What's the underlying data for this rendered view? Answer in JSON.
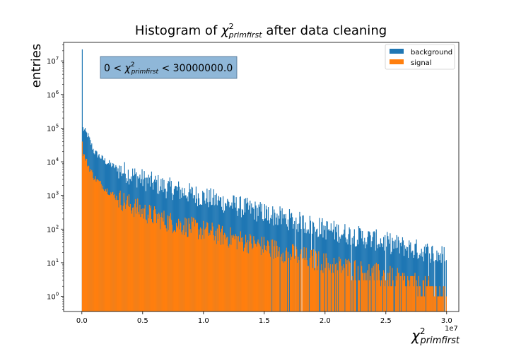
{
  "chart_data": {
    "type": "bar",
    "subtype": "histogram",
    "title_prefix": "Histogram of ",
    "title_suffix": " after data cleaning",
    "variable_symbol": "χ",
    "variable_superscript": "2",
    "variable_subscript": "primfirst",
    "ylabel": "entries",
    "x_offset_label": "1e7",
    "x_ticks": [
      0.0,
      0.5,
      1.0,
      1.5,
      2.0,
      2.5,
      3.0
    ],
    "x_tick_labels": [
      "0.0",
      "0.5",
      "1.0",
      "1.5",
      "2.0",
      "2.5",
      "3.0"
    ],
    "xlim": [
      -0.15,
      3.1
    ],
    "yscale": "log",
    "ylim_exponent": [
      -0.45,
      7.55
    ],
    "y_tick_exponents": [
      0,
      1,
      2,
      3,
      4,
      5,
      6,
      7
    ],
    "y_tick_base": "10",
    "range": [
      0,
      30000000
    ],
    "bins": 500,
    "annotation": {
      "prefix": "0 < ",
      "suffix": " < 30000000.0",
      "box_color": "#8fb7d8"
    },
    "legend": {
      "placement": "top-right"
    },
    "series": [
      {
        "name": "background",
        "color": "#1f77b4",
        "peak": 22000000,
        "envelope": [
          [
            0.0,
            110000
          ],
          [
            0.05,
            60000
          ],
          [
            0.1,
            20000
          ],
          [
            0.2,
            10000
          ],
          [
            0.3,
            6000
          ],
          [
            0.5,
            3000
          ],
          [
            0.7,
            1700
          ],
          [
            1.0,
            900
          ],
          [
            1.5,
            300
          ],
          [
            2.0,
            100
          ],
          [
            2.5,
            40
          ],
          [
            3.0,
            15
          ]
        ]
      },
      {
        "name": "signal",
        "color": "#ff7f0e",
        "peak": 40000,
        "envelope": [
          [
            0.0,
            22000
          ],
          [
            0.05,
            8000
          ],
          [
            0.1,
            3500
          ],
          [
            0.2,
            1500
          ],
          [
            0.3,
            800
          ],
          [
            0.5,
            330
          ],
          [
            0.7,
            170
          ],
          [
            1.0,
            90
          ],
          [
            1.5,
            30
          ],
          [
            2.0,
            10
          ],
          [
            2.5,
            4
          ],
          [
            3.0,
            1.2
          ]
        ]
      }
    ]
  }
}
